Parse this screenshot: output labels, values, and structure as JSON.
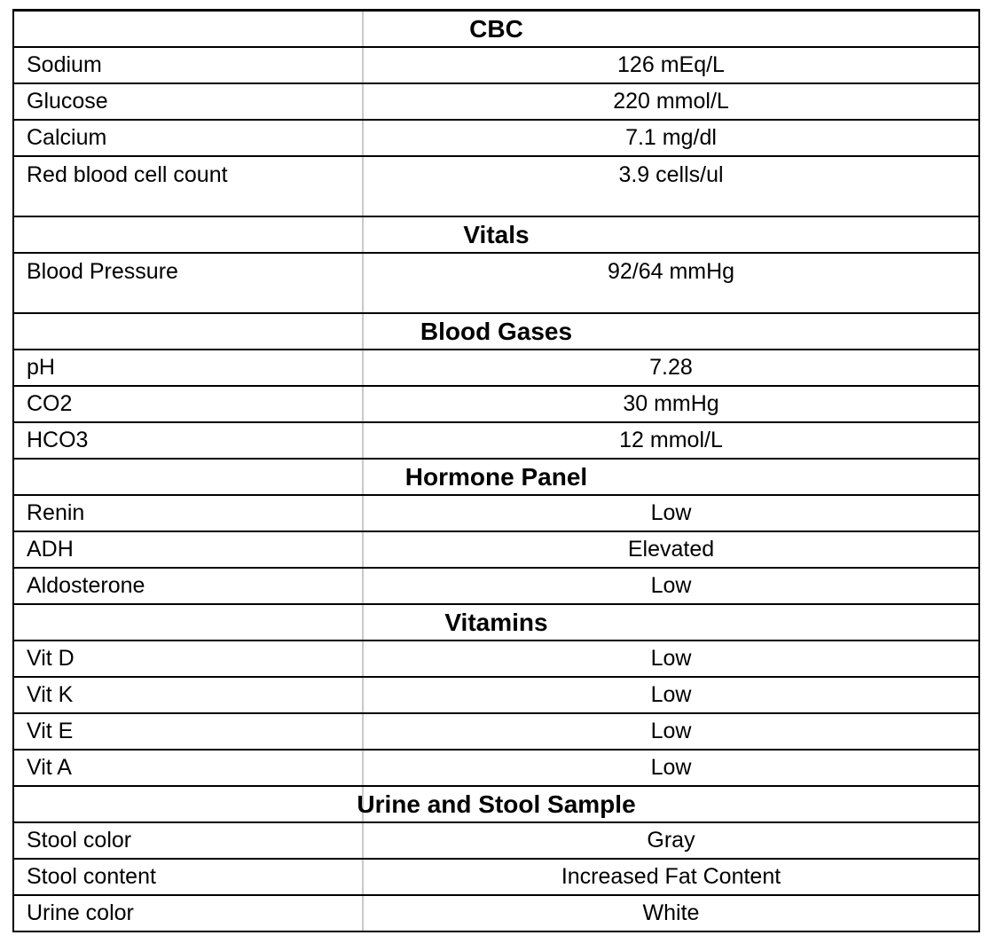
{
  "page": {
    "background": "#ffffff"
  },
  "table": {
    "name": "lab-results",
    "colors": {
      "row_border": "#000000",
      "column_divider": "#c9c9c9",
      "text": "#000000",
      "background": "#ffffff"
    },
    "sections": [
      {
        "title": "CBC",
        "rows": [
          {
            "label": "Sodium",
            "value": "126 mEq/L"
          },
          {
            "label": "Glucose",
            "value": "220 mmol/L"
          },
          {
            "label": "Calcium",
            "value": "7.1 mg/dl"
          },
          {
            "label": "Red blood cell count",
            "value": "3.9 cells/ul",
            "tall": true
          }
        ]
      },
      {
        "title": "Vitals",
        "rows": [
          {
            "label": "Blood Pressure",
            "value": "92/64 mmHg",
            "tall": true
          }
        ]
      },
      {
        "title": "Blood Gases",
        "rows": [
          {
            "label": "pH",
            "value": "7.28"
          },
          {
            "label": "CO2",
            "value": "30 mmHg"
          },
          {
            "label": "HCO3",
            "value": "12 mmol/L"
          }
        ]
      },
      {
        "title": "Hormone Panel",
        "rows": [
          {
            "label": "Renin",
            "value": "Low"
          },
          {
            "label": "ADH",
            "value": "Elevated"
          },
          {
            "label": "Aldosterone",
            "value": "Low"
          }
        ]
      },
      {
        "title": "Vitamins",
        "rows": [
          {
            "label": "Vit D",
            "value": "Low"
          },
          {
            "label": "Vit K",
            "value": "Low"
          },
          {
            "label": "Vit E",
            "value": "Low"
          },
          {
            "label": "Vit A",
            "value": "Low"
          }
        ]
      },
      {
        "title": "Urine and Stool Sample",
        "rows": [
          {
            "label": "Stool color",
            "value": "Gray"
          },
          {
            "label": "Stool content",
            "value": "Increased Fat Content"
          },
          {
            "label": "Urine color",
            "value": "White"
          }
        ]
      }
    ]
  }
}
